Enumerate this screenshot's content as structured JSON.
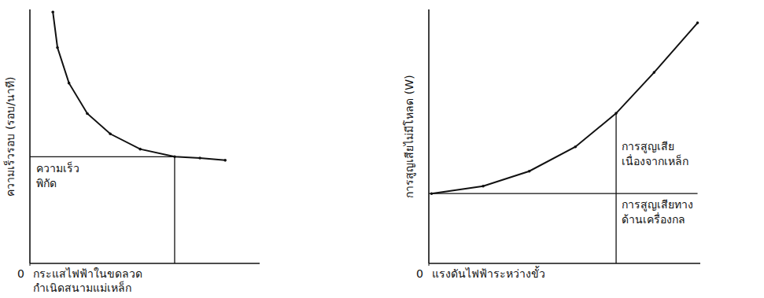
{
  "chart_data": [
    {
      "type": "line",
      "x_label": "กระแสไฟฟ้าในขดลวด กำเนิดสนามแม่เหล็ก",
      "y_label": "ความเร็วรอบ (รอบ/นาที)",
      "x": [
        1.0,
        1.2,
        1.7,
        2.5,
        3.5,
        4.8,
        6.3,
        7.4,
        8.5
      ],
      "values": [
        9.9,
        8.5,
        7.1,
        5.9,
        5.1,
        4.5,
        4.2,
        4.15,
        4.06
      ],
      "xlim": [
        0,
        10
      ],
      "ylim": [
        0,
        10
      ],
      "xticks": [
        0
      ],
      "yticks": [],
      "color": "#111111",
      "rated": {
        "x": 6.3,
        "y": 4.2,
        "label": "ความเร็ว พิกัด"
      }
    },
    {
      "type": "line",
      "x_label": "แรงดันไฟฟ้าระหว่างขั้ว",
      "y_label": "การสูญเสียไม่มีโหลด (W)",
      "x": [
        0.1,
        2.0,
        3.7,
        5.4,
        6.9,
        8.3,
        9.9
      ],
      "values": [
        2.75,
        3.04,
        3.63,
        4.59,
        5.91,
        7.52,
        9.47
      ],
      "xlim": [
        0,
        10
      ],
      "ylim": [
        0,
        10
      ],
      "xticks": [
        0
      ],
      "yticks": [],
      "color": "#111111",
      "rated_x": 6.9,
      "mechanical_loss": {
        "value": 2.75,
        "label": "การสูญเสียทาง ด้านเครื่องกล"
      },
      "iron_loss": {
        "label": "การสูญเสีย เนื่องจากเหล็ก"
      }
    }
  ]
}
